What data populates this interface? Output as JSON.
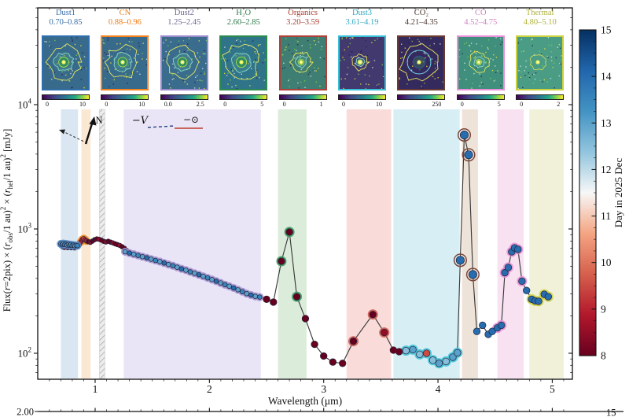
{
  "panels": [
    {
      "name": "Dust1",
      "range": "0.70–0.85",
      "title_color": "#3a6fab",
      "border_color": "#2f6fae",
      "cb_left": "0",
      "cb_right": "10",
      "img": {
        "bg": "#386a8b",
        "o": 21,
        "kind": "blob",
        "seed": 11
      }
    },
    {
      "name": "CN",
      "range": "0.88–0.96",
      "title_color": "#ee7d18",
      "border_color": "#f5821f",
      "cb_left": "0",
      "cb_right": "10",
      "img": {
        "bg": "#386a8b",
        "o": 20,
        "kind": "blob",
        "seed": 22
      }
    },
    {
      "name": "Dust2",
      "range": "1.25–2.45",
      "title_color": "#6b6894",
      "border_color": "#9c88cc",
      "cb_left": "0.0",
      "cb_right": "2.5",
      "img": {
        "bg": "#3a6c8d",
        "o": 20,
        "kind": "blob",
        "seed": 33
      }
    },
    {
      "name": "H₂O",
      "range": "2.60–2.85",
      "title_color": "#2c7a49",
      "border_color": "#2e8b50",
      "cb_left": "0",
      "cb_right": "5",
      "img": {
        "bg": "#30748a",
        "o": 22,
        "kind": "blob",
        "seed": 44
      }
    },
    {
      "name": "Organics",
      "range": "3.20–3.59",
      "title_color": "#a93a30",
      "border_color": "#b04038",
      "cb_left": "0",
      "cb_right": "1",
      "img": {
        "bg": "#3f7e72",
        "o": 13,
        "kind": "blob",
        "seed": 55
      }
    },
    {
      "name": "Dust3",
      "range": "3.61–4.19",
      "title_color": "#33a9c4",
      "border_color": "#38c0d8",
      "cb_left": "0",
      "cb_right": "10",
      "img": {
        "bg": "#423a6f",
        "o": 10,
        "kind": "blob",
        "seed": 66
      }
    },
    {
      "name": "CO₂",
      "range": "4.21–4.35",
      "title_color": "#4a342e",
      "border_color": "#6b3a31",
      "cb_left": "",
      "cb_right": "250",
      "img": {
        "bg": "#352a5e",
        "o": 23,
        "kind": "rings",
        "seed": 77
      }
    },
    {
      "name": "CO",
      "range": "4.52–4.75",
      "title_color": "#cf7fc3",
      "border_color": "#e98fd9",
      "cb_left": "0",
      "cb_right": "5",
      "img": {
        "bg": "#3f8f7c",
        "o": 12,
        "kind": "blob",
        "seed": 88
      }
    },
    {
      "name": "Thermal",
      "range": "4.80–5.10",
      "title_color": "#b0b23e",
      "border_color": "#ccd13e",
      "cb_left": "0",
      "cb_right": "2",
      "img": {
        "bg": "#4a9c85",
        "o": 10,
        "kind": "faint",
        "seed": 99
      }
    }
  ],
  "compass": {
    "north_label": "N"
  },
  "legend": {
    "v_label": "−V",
    "sun_label": "−⊙",
    "v_color": "#1f3f7a",
    "sun_color": "#bf3b2b"
  },
  "bottom_strip": {
    "left_tick_label": "2.00",
    "right_tick_label": "15"
  },
  "chart_data": {
    "type": "scatter",
    "title": "",
    "xlabel": "Wavelength (μm)",
    "ylabel": "Flux(r=2pix) × (robs/1 au)² × (rhel/1 au)² [mJy]",
    "ylabel_segments": [
      [
        "Flux(",
        ""
      ],
      [
        "r",
        "i"
      ],
      [
        "=2pix) ",
        ""
      ],
      [
        "× (",
        ""
      ],
      [
        "r",
        "i"
      ],
      [
        "obs",
        "sub"
      ],
      [
        "/1 au)",
        ""
      ],
      [
        "2",
        "sup"
      ],
      [
        " × (",
        ""
      ],
      [
        "r",
        "i"
      ],
      [
        "hel",
        "sub"
      ],
      [
        "/1 au)",
        ""
      ],
      [
        "2",
        "sup"
      ],
      [
        " [mJy]",
        ""
      ]
    ],
    "x_ticks": [
      1,
      2,
      3,
      4,
      5
    ],
    "y_tick_exponents": [
      2,
      3,
      4
    ],
    "xlim": [
      0.5,
      5.175
    ],
    "ylog_lim": [
      1.79,
      4.79
    ],
    "grid": false,
    "colorbar": {
      "label": "Day in 2025 Dec",
      "min": 8,
      "max": 15,
      "ticks": [
        8,
        9,
        10,
        11,
        12,
        13,
        14,
        15
      ],
      "stops": [
        "#67001f",
        "#b2182b",
        "#d6604d",
        "#f4a582",
        "#f7f7f7",
        "#92c5de",
        "#4393c3",
        "#2166ac",
        "#053061"
      ]
    },
    "bands": [
      {
        "name": "Dust1",
        "x0": 0.7,
        "x1": 0.85,
        "fill": "#dae7f3",
        "halo": "#5b8ec9"
      },
      {
        "name": "CN",
        "x0": 0.88,
        "x1": 0.96,
        "fill": "#fbe8d2",
        "halo": "#f08c2a"
      },
      {
        "name": "Dust2",
        "x0": 1.25,
        "x1": 2.45,
        "fill": "#eae5f6",
        "halo": "#a493d2"
      },
      {
        "name": "H2O",
        "x0": 2.6,
        "x1": 2.85,
        "fill": "#dcecdb",
        "halo": "#3d9960"
      },
      {
        "name": "Organics",
        "x0": 3.2,
        "x1": 3.59,
        "fill": "#f9dcda",
        "halo": "#cc5a50"
      },
      {
        "name": "Dust3",
        "x0": 3.61,
        "x1": 4.19,
        "fill": "#d7eff4",
        "halo": "#45c2d8"
      },
      {
        "name": "CO2",
        "x0": 4.21,
        "x1": 4.35,
        "fill": "#eee3d8",
        "halo": "#7a463c"
      },
      {
        "name": "CO",
        "x0": 4.52,
        "x1": 4.75,
        "fill": "#f8e1f1",
        "halo": "#e492d4"
      },
      {
        "name": "Thermal",
        "x0": 4.8,
        "x1": 5.1,
        "fill": "#f0f1d8",
        "halo": "#cdd24a"
      }
    ],
    "hatched_band": {
      "x0": 1.038,
      "x1": 1.085
    },
    "series": [
      {
        "name": "epoch-day8-shortwave",
        "points": [
          [
            0.715,
            718,
            8,
            -1
          ],
          [
            0.73,
            710,
            8.5,
            -1
          ],
          [
            0.745,
            722,
            8,
            -1
          ],
          [
            0.76,
            708,
            8,
            -1
          ],
          [
            0.775,
            720,
            8.5,
            -1
          ],
          [
            0.79,
            706,
            8,
            -1
          ],
          [
            0.805,
            714,
            8,
            -1
          ],
          [
            0.82,
            704,
            8.5,
            -1
          ],
          [
            0.835,
            716,
            8,
            -1
          ],
          [
            0.85,
            730,
            8,
            -1
          ],
          [
            0.862,
            748,
            8.5,
            -1
          ],
          [
            0.876,
            790,
            9,
            1
          ],
          [
            0.888,
            822,
            9,
            1
          ],
          [
            0.9,
            835,
            9.5,
            1
          ],
          [
            0.912,
            818,
            9,
            1
          ],
          [
            0.924,
            800,
            9,
            1
          ],
          [
            0.94,
            790,
            8,
            -1
          ],
          [
            0.958,
            780,
            8.5,
            -1
          ],
          [
            0.976,
            798,
            8,
            -1
          ],
          [
            0.995,
            820,
            8,
            -1
          ],
          [
            1.015,
            832,
            8,
            -1
          ],
          [
            1.035,
            826,
            8.5,
            -1
          ],
          [
            1.055,
            812,
            8,
            -1
          ],
          [
            1.075,
            795,
            8,
            -1
          ],
          [
            1.095,
            786,
            8.5,
            -1
          ],
          [
            1.115,
            796,
            8,
            -1
          ],
          [
            1.135,
            784,
            8,
            -1
          ],
          [
            1.155,
            772,
            8.5,
            -1
          ],
          [
            1.175,
            760,
            8,
            -1
          ],
          [
            1.195,
            748,
            8,
            -1
          ],
          [
            1.215,
            738,
            8.5,
            -1
          ],
          [
            1.235,
            720,
            8,
            -1
          ],
          [
            1.255,
            700,
            8,
            -1
          ],
          [
            1.275,
            672,
            8.5,
            -1
          ],
          [
            1.295,
            646,
            8,
            -1
          ]
        ]
      },
      {
        "name": "epoch-day13-dust1",
        "points": [
          [
            0.7,
            758,
            13,
            0
          ],
          [
            0.711,
            746,
            13.5,
            0
          ],
          [
            0.722,
            762,
            13,
            0
          ],
          [
            0.733,
            750,
            13,
            0
          ],
          [
            0.744,
            758,
            13.5,
            0
          ],
          [
            0.755,
            742,
            13,
            0
          ],
          [
            0.766,
            752,
            13,
            0
          ],
          [
            0.777,
            740,
            13.5,
            0
          ],
          [
            0.788,
            748,
            13,
            0
          ],
          [
            0.799,
            736,
            13,
            0
          ],
          [
            0.81,
            742,
            13.5,
            0
          ],
          [
            0.822,
            732,
            13,
            0
          ],
          [
            0.834,
            738,
            13,
            0
          ],
          [
            0.845,
            734,
            13.5,
            0
          ]
        ]
      },
      {
        "name": "main-spectrum",
        "points": [
          [
            1.262,
            656,
            13,
            2
          ],
          [
            1.3,
            640,
            14,
            2
          ],
          [
            1.338,
            626,
            13,
            2
          ],
          [
            1.376,
            612,
            13.5,
            2
          ],
          [
            1.414,
            598,
            13,
            2
          ],
          [
            1.452,
            586,
            14,
            2
          ],
          [
            1.49,
            572,
            13,
            2
          ],
          [
            1.528,
            558,
            13.5,
            2
          ],
          [
            1.566,
            546,
            13,
            2
          ],
          [
            1.604,
            532,
            14,
            2
          ],
          [
            1.642,
            518,
            13,
            2
          ],
          [
            1.68,
            506,
            13.5,
            2
          ],
          [
            1.718,
            492,
            13,
            2
          ],
          [
            1.756,
            478,
            14,
            2
          ],
          [
            1.794,
            466,
            13,
            2
          ],
          [
            1.832,
            452,
            13.5,
            2
          ],
          [
            1.87,
            440,
            13,
            2
          ],
          [
            1.908,
            428,
            14,
            2
          ],
          [
            1.946,
            416,
            13,
            2
          ],
          [
            1.984,
            404,
            13.5,
            2
          ],
          [
            2.022,
            392,
            13,
            2
          ],
          [
            2.06,
            380,
            14,
            2
          ],
          [
            2.098,
            368,
            13,
            2
          ],
          [
            2.136,
            356,
            13.5,
            2
          ],
          [
            2.174,
            346,
            13,
            2
          ],
          [
            2.212,
            335,
            14,
            2
          ],
          [
            2.25,
            324,
            13,
            2
          ],
          [
            2.288,
            313,
            13.5,
            2
          ],
          [
            2.326,
            302,
            13,
            2
          ],
          [
            2.364,
            294,
            14,
            2
          ],
          [
            2.402,
            287,
            13,
            2
          ],
          [
            2.44,
            283,
            13.5,
            2
          ],
          [
            2.5,
            272,
            8,
            -1
          ],
          [
            2.56,
            258,
            8,
            -1
          ],
          [
            2.63,
            550,
            8,
            3
          ],
          [
            2.7,
            945,
            8,
            3
          ],
          [
            2.765,
            285,
            8,
            3
          ],
          [
            2.84,
            190,
            8,
            -1
          ],
          [
            2.92,
            118,
            8,
            -1
          ],
          [
            3.0,
            95,
            8,
            -1
          ],
          [
            3.08,
            85,
            8,
            -1
          ],
          [
            3.165,
            83,
            8,
            -1
          ],
          [
            3.26,
            125,
            8,
            4
          ],
          [
            3.43,
            205,
            8,
            4
          ],
          [
            3.53,
            147,
            8.5,
            4
          ],
          [
            3.61,
            106,
            8,
            -1
          ],
          [
            3.66,
            103,
            8,
            -1
          ],
          [
            3.72,
            105,
            12.5,
            5
          ],
          [
            3.78,
            107,
            13,
            5
          ],
          [
            3.84,
            98,
            12.5,
            5
          ],
          [
            3.9,
            100,
            9.5,
            5
          ],
          [
            3.955,
            88,
            12.5,
            5
          ],
          [
            4.01,
            83,
            13,
            5
          ],
          [
            4.07,
            86,
            12.5,
            5
          ],
          [
            4.13,
            93,
            13,
            5
          ],
          [
            4.17,
            101,
            13,
            5
          ],
          [
            4.195,
            560,
            14,
            6
          ],
          [
            4.23,
            5700,
            14,
            6
          ],
          [
            4.268,
            3950,
            14,
            6
          ],
          [
            4.305,
            430,
            14,
            6
          ],
          [
            4.34,
            150,
            14,
            -1
          ],
          [
            4.39,
            168,
            14,
            -1
          ],
          [
            4.44,
            142,
            14,
            -1
          ],
          [
            4.475,
            150,
            14,
            -1
          ],
          [
            4.52,
            160,
            14,
            7
          ],
          [
            4.555,
            168,
            14,
            7
          ],
          [
            4.585,
            445,
            14,
            7
          ],
          [
            4.615,
            490,
            14,
            7
          ],
          [
            4.645,
            655,
            14,
            7
          ],
          [
            4.67,
            705,
            14,
            7
          ],
          [
            4.7,
            685,
            14,
            7
          ],
          [
            4.735,
            380,
            14,
            7
          ],
          [
            4.775,
            320,
            14,
            -1
          ],
          [
            4.82,
            272,
            14,
            8
          ],
          [
            4.85,
            264,
            14,
            8
          ],
          [
            4.88,
            262,
            14,
            8
          ],
          [
            4.93,
            298,
            14,
            8
          ],
          [
            4.965,
            285,
            14,
            8
          ]
        ]
      }
    ]
  }
}
